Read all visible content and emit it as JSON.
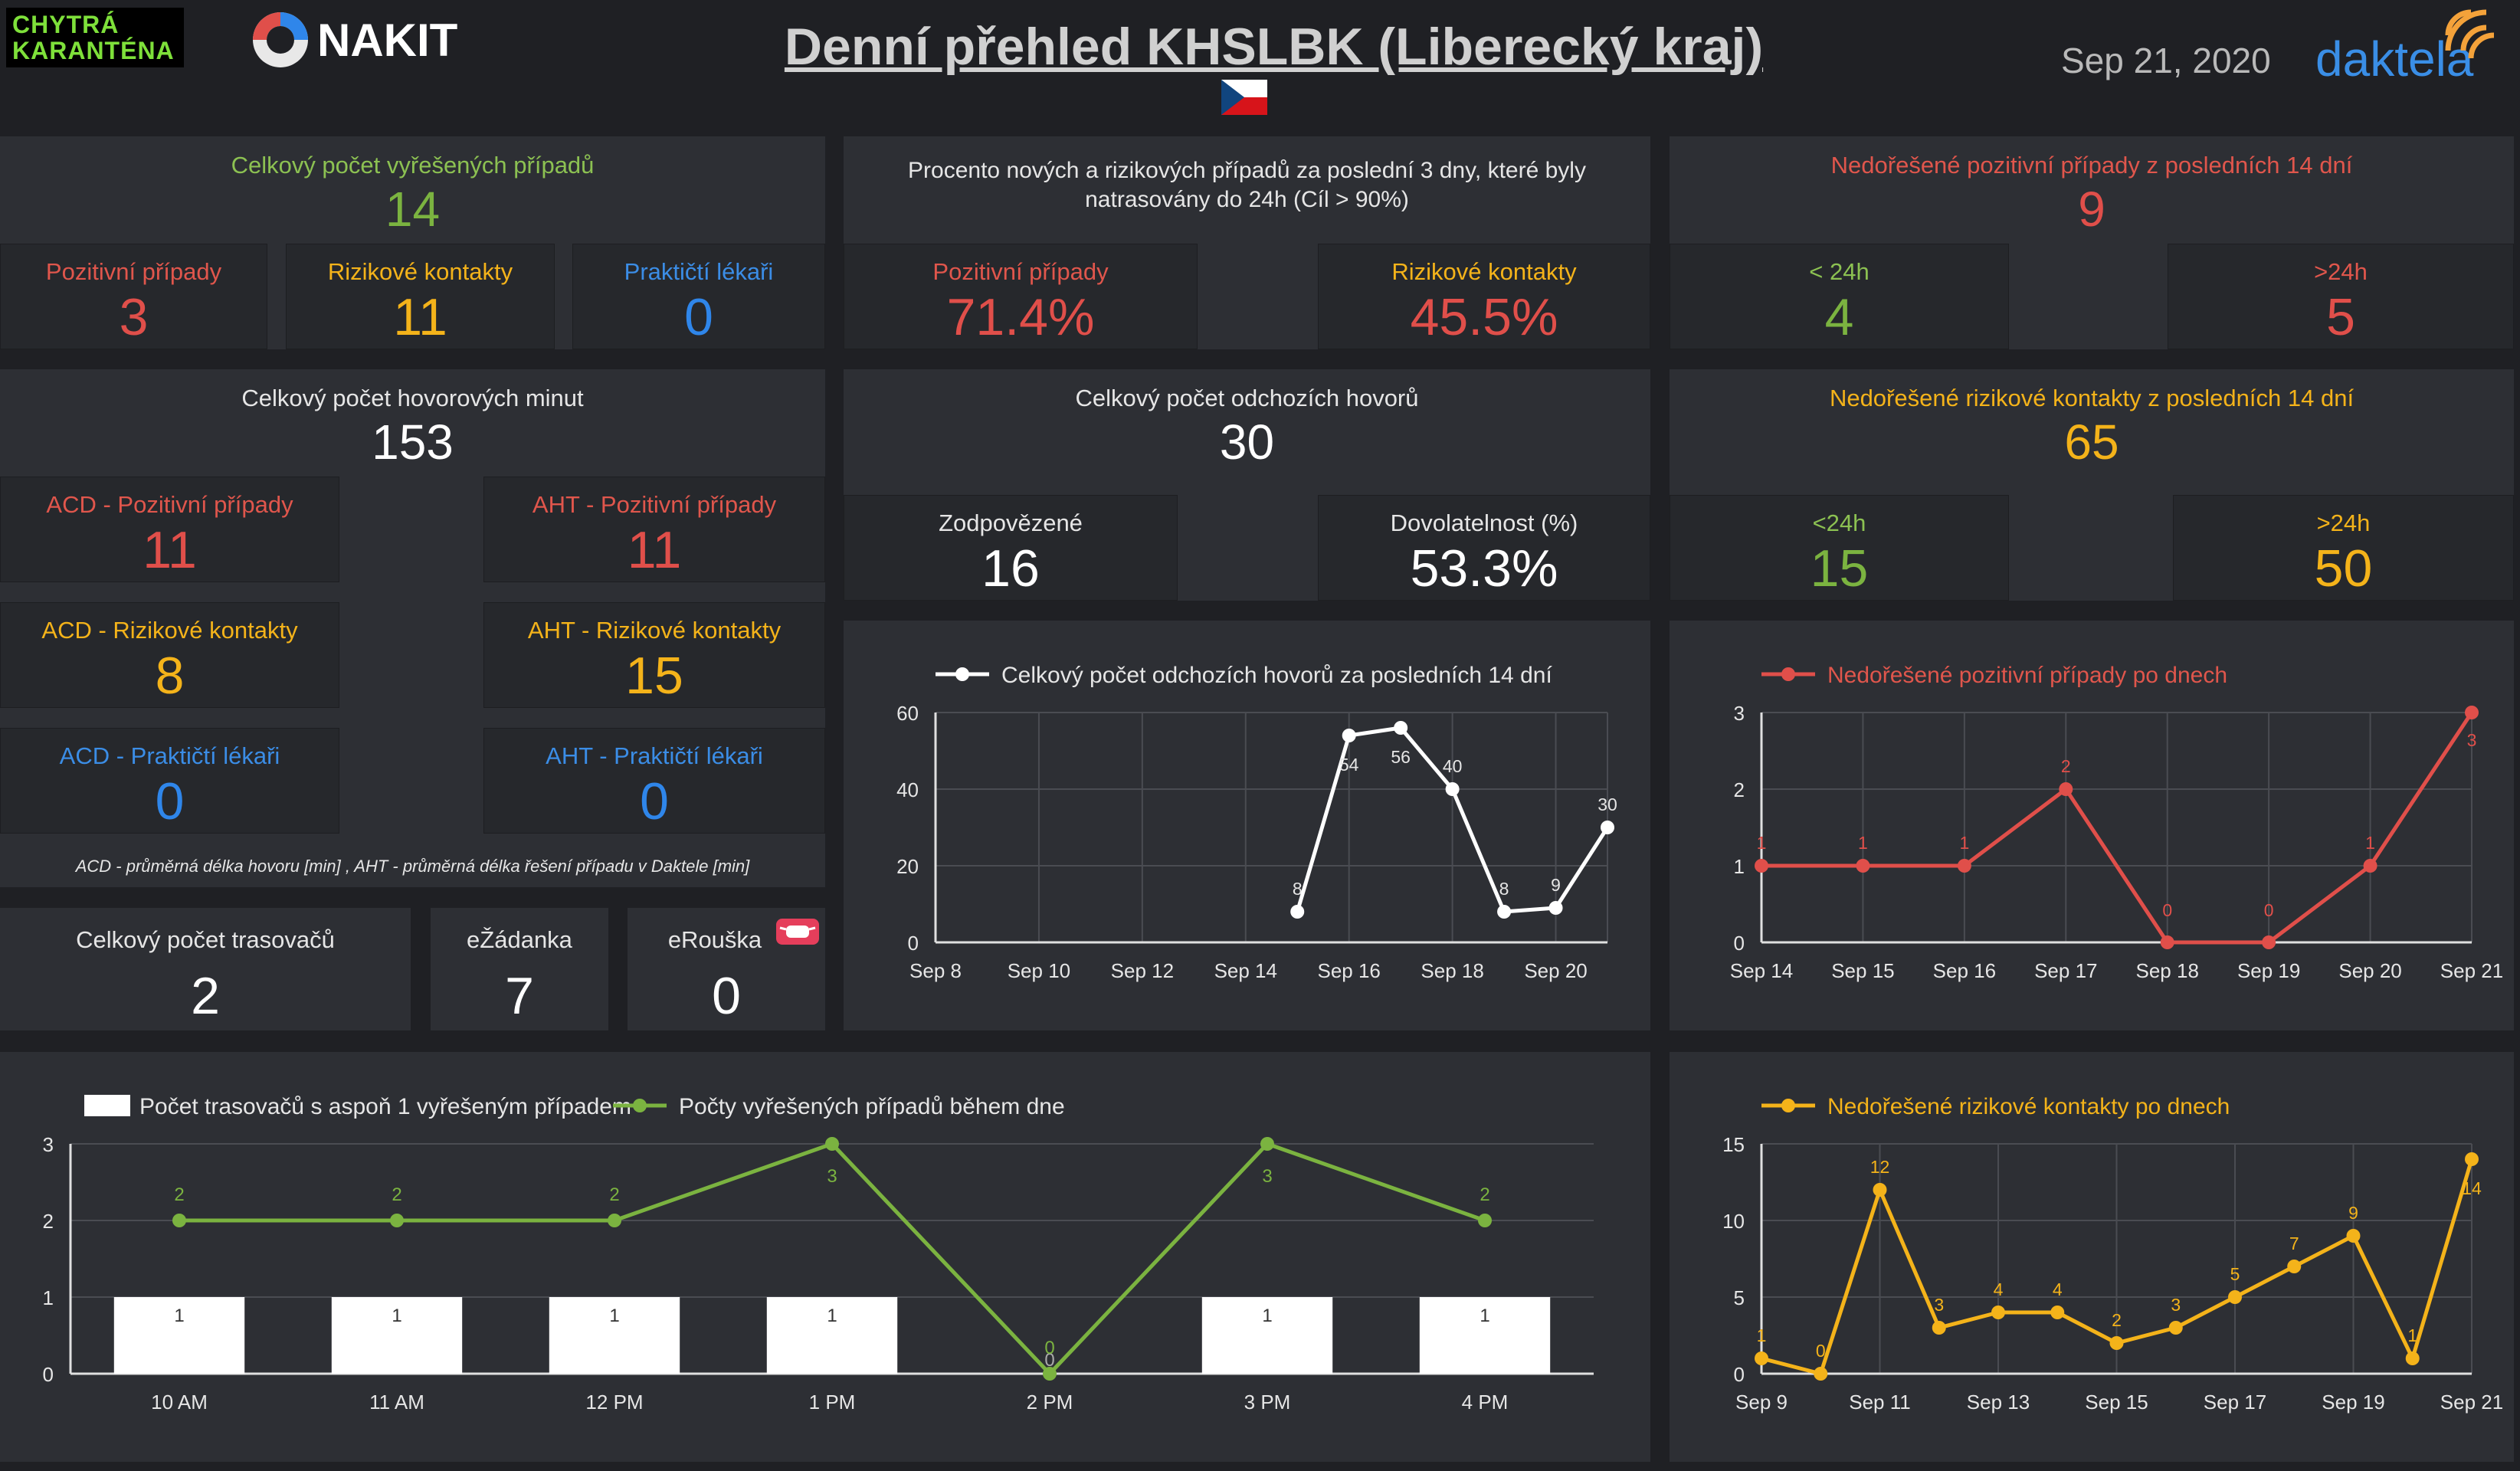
{
  "header": {
    "logo_line1": "CHYTRÁ",
    "logo_line2": "KARANTÉNA",
    "nakit": "NAKIT",
    "title": "Denní přehled KHSLBK (Liberecký kraj)",
    "date": "Sep 21, 2020",
    "brand": "daktela",
    "flag_icon": "czech-flag-icon"
  },
  "resolved": {
    "title": "Celkový počet vyřešených případů",
    "total": "14",
    "cells": [
      {
        "label": "Pozitivní případy",
        "value": "3"
      },
      {
        "label": "Rizikové kontakty",
        "value": "11"
      },
      {
        "label": "Praktičtí lékaři",
        "value": "0"
      }
    ]
  },
  "traced": {
    "title": "Procento nových a rizikových případů za poslední 3 dny, které byly natrasovány do 24h (Cíl > 90%)",
    "cells": [
      {
        "label": "Pozitivní případy",
        "value": "71.4%"
      },
      {
        "label": "Rizikové kontakty",
        "value": "45.5%"
      }
    ]
  },
  "unres_pos": {
    "title": "Nedořešené pozitivní případy z posledních 14 dní",
    "total": "9",
    "cells": [
      {
        "label": "< 24h",
        "value": "4"
      },
      {
        "label": ">24h",
        "value": "5"
      }
    ]
  },
  "minutes": {
    "title": "Celkový počet hovorových minut",
    "total": "153",
    "cells": [
      {
        "label": "ACD - Pozitivní případy",
        "value": "11"
      },
      {
        "label": "AHT - Pozitivní případy",
        "value": "11"
      },
      {
        "label": "ACD - Rizikové kontakty",
        "value": "8"
      },
      {
        "label": "AHT - Rizikové kontakty",
        "value": "15"
      },
      {
        "label": "ACD - Praktičtí lékaři",
        "value": "0"
      },
      {
        "label": "AHT - Praktičtí lékaři",
        "value": "0"
      }
    ],
    "footnote": "ACD - průměrná délka hovoru [min] , AHT - průměrná délka řešení případu v Daktele [min]"
  },
  "calls": {
    "title": "Celkový počet odchozích hovorů",
    "total": "30",
    "cells": [
      {
        "label": "Zodpovězené",
        "value": "16"
      },
      {
        "label": "Dovolatelnost (%)",
        "value": "53.3%"
      }
    ]
  },
  "unres_risk": {
    "title": "Nedořešené rizikové kontakty z posledních 14 dní",
    "total": "65",
    "cells": [
      {
        "label": "<24h",
        "value": "15"
      },
      {
        "label": ">24h",
        "value": "50"
      }
    ]
  },
  "tracers": {
    "label": "Celkový počet trasovačů",
    "value": "2"
  },
  "ezadanka": {
    "label": "eŽádanka",
    "value": "7"
  },
  "erouska": {
    "label": "eRouška",
    "value": "0",
    "icon": "mask-icon"
  },
  "colors": {
    "background": "#1f2024",
    "panel": "#2d2f34",
    "red": "#e04f4a",
    "orange": "#f4b31a",
    "blue": "#2f86ea",
    "green": "#7bb340",
    "white": "#ffffff"
  },
  "chart_data": [
    {
      "id": "calls",
      "type": "line",
      "series": [
        {
          "name": "Celkový počet odchozích hovorů za posledních 14 dní",
          "color": "#ffffff"
        }
      ],
      "x_ticks": [
        "Sep 8",
        "Sep 10",
        "Sep 12",
        "Sep 14",
        "Sep 16",
        "Sep 18",
        "Sep 20"
      ],
      "x_index_range": [
        0,
        13
      ],
      "y_ticks": [
        0,
        20,
        40,
        60
      ],
      "ylim": [
        0,
        60
      ],
      "points": [
        {
          "x": "Sep 15",
          "y": 8
        },
        {
          "x": "Sep 16",
          "y": 54
        },
        {
          "x": "Sep 17",
          "y": 56
        },
        {
          "x": "Sep 18",
          "y": 40
        },
        {
          "x": "Sep 19",
          "y": 8
        },
        {
          "x": "Sep 20",
          "y": 9
        },
        {
          "x": "Sep 21",
          "y": 30
        }
      ],
      "point_index": [
        7,
        8,
        9,
        10,
        11,
        12,
        13
      ],
      "grid": true,
      "legend": "top-left"
    },
    {
      "id": "pos",
      "type": "line",
      "series": [
        {
          "name": "Nedořešené pozitivní případy po dnech",
          "color": "#e04f4a"
        }
      ],
      "x_ticks": [
        "Sep 14",
        "Sep 15",
        "Sep 16",
        "Sep 17",
        "Sep 18",
        "Sep 19",
        "Sep 20",
        "Sep 21"
      ],
      "y_ticks": [
        0,
        1,
        2,
        3
      ],
      "ylim": [
        0,
        3
      ],
      "points": [
        {
          "x": "Sep 14",
          "y": 1
        },
        {
          "x": "Sep 15",
          "y": 1
        },
        {
          "x": "Sep 16",
          "y": 1
        },
        {
          "x": "Sep 17",
          "y": 2
        },
        {
          "x": "Sep 18",
          "y": 0
        },
        {
          "x": "Sep 19",
          "y": 0
        },
        {
          "x": "Sep 20",
          "y": 1
        },
        {
          "x": "Sep 21",
          "y": 3
        }
      ],
      "grid": true,
      "legend": "top-left"
    },
    {
      "id": "combo",
      "type": "bar",
      "categories": [
        "10 AM",
        "11 AM",
        "12 PM",
        "1 PM",
        "2 PM",
        "3 PM",
        "4 PM"
      ],
      "series": [
        {
          "name": "Počet trasovačů s aspoň 1 vyřešeným případem",
          "type": "bar",
          "color": "#ffffff",
          "values": [
            1,
            1,
            1,
            1,
            0,
            1,
            1
          ]
        },
        {
          "name": "Počty vyřešených případů během dne",
          "type": "line",
          "color": "#7bb340",
          "values": [
            2,
            2,
            2,
            3,
            0,
            3,
            2
          ]
        }
      ],
      "y_ticks": [
        0,
        1,
        2,
        3
      ],
      "ylim": [
        0,
        3
      ],
      "grid": true,
      "legend": "top-left"
    },
    {
      "id": "risk",
      "type": "line",
      "series": [
        {
          "name": "Nedořešené rizikové kontakty po dnech",
          "color": "#f4b31a"
        }
      ],
      "x_ticks": [
        "Sep 9",
        "Sep 11",
        "Sep 13",
        "Sep 15",
        "Sep 17",
        "Sep 19",
        "Sep 21"
      ],
      "x_index_range": [
        0,
        12
      ],
      "y_ticks": [
        0,
        5,
        10,
        15
      ],
      "ylim": [
        0,
        15
      ],
      "values": [
        1,
        0,
        12,
        3,
        4,
        4,
        2,
        3,
        5,
        7,
        9,
        1,
        14
      ],
      "grid": true,
      "legend": "top-left"
    }
  ]
}
